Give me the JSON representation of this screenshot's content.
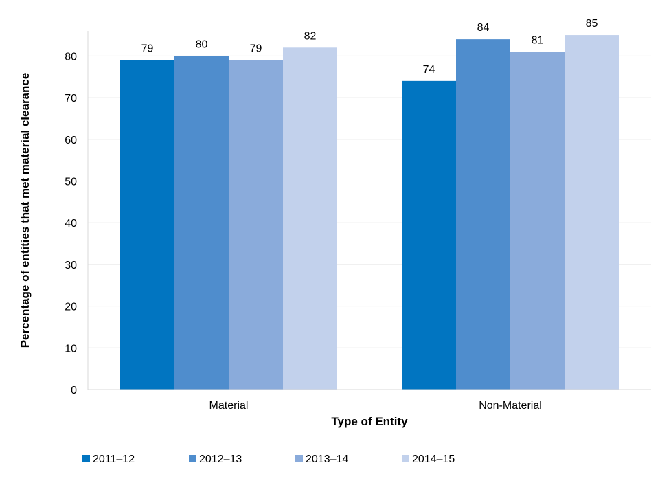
{
  "chart_data": {
    "type": "bar",
    "title": "",
    "xlabel": "Type of Entity",
    "ylabel": "Percentage of entities that met material clearance",
    "categories": [
      "Material",
      "Non-Material"
    ],
    "series": [
      {
        "name": "2011–12",
        "values": [
          79,
          74
        ],
        "color": "#0175c1"
      },
      {
        "name": "2012–13",
        "values": [
          80,
          84
        ],
        "color": "#4f8dcd"
      },
      {
        "name": "2013–14",
        "values": [
          79,
          81
        ],
        "color": "#8aabdb"
      },
      {
        "name": "2014–15",
        "values": [
          82,
          85
        ],
        "color": "#c2d1ec"
      }
    ],
    "ylim": [
      0,
      86
    ],
    "yticks": [
      0,
      10,
      20,
      30,
      40,
      50,
      60,
      70,
      80
    ],
    "grid": true,
    "legend_position": "bottom-left",
    "data_labels": true
  }
}
